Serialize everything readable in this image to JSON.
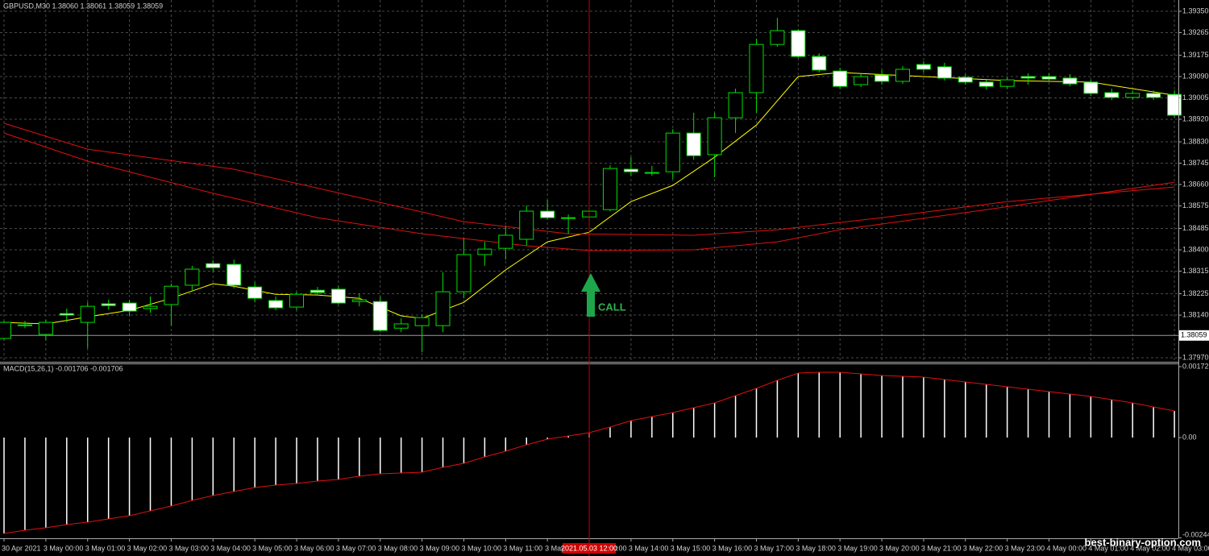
{
  "chart_data": [
    {
      "type": "candlestick",
      "title": "GBPUSD,M30  1.38060 1.38061 1.38059 1.38059",
      "categories": [
        "30 Apr 2021",
        null,
        "3 May 00:00",
        null,
        "3 May 01:00",
        null,
        "3 May 02:00",
        null,
        "3 May 03:00",
        null,
        "3 May 04:00",
        null,
        "3 May 05:00",
        null,
        "3 May 06:00",
        null,
        "3 May 07:00",
        null,
        "3 May 08:00",
        null,
        "3 May 09:00",
        null,
        "3 May 10:00",
        null,
        "3 May 11:00",
        null,
        "3 May 12:00",
        null,
        "3 May 13:00",
        null,
        "3 May 14:00",
        null,
        "3 May 15:00",
        null,
        "3 May 16:00",
        null,
        "3 May 17:00",
        null,
        "3 May 18:00",
        null,
        "3 May 19:00",
        null,
        "3 May 20:00",
        null,
        "3 May 21:00",
        null,
        "3 May 22:00",
        null,
        "3 May 23:00",
        null,
        "4 May 00:00",
        null,
        "4 May 01:00",
        null,
        "4 May 02:00",
        null,
        "4 May 03:00"
      ],
      "open": [
        1.38047,
        1.38101,
        1.38063,
        1.38146,
        1.38111,
        1.38185,
        1.38188,
        1.38166,
        1.38182,
        1.38259,
        1.38345,
        1.38342,
        1.38252,
        1.38198,
        1.38172,
        1.38239,
        1.38243,
        1.38194,
        1.38194,
        1.38088,
        1.38098,
        1.38098,
        1.38233,
        1.38381,
        1.38406,
        1.38442,
        1.38554,
        1.38528,
        1.38531,
        1.3856,
        1.38721,
        1.38708,
        1.38711,
        1.38865,
        1.38779,
        1.38926,
        1.39026,
        1.39218,
        1.39273,
        1.3917,
        1.39112,
        1.39058,
        1.39096,
        1.39071,
        1.39138,
        1.39129,
        1.39087,
        1.39068,
        1.39051,
        1.3909,
        1.3909,
        1.39084,
        1.39068,
        1.39026,
        1.39007,
        1.39023,
        1.39019
      ],
      "high": [
        1.38117,
        1.38117,
        1.38121,
        1.38166,
        1.38191,
        1.38201,
        1.38201,
        1.38214,
        1.38265,
        1.38336,
        1.38358,
        1.38361,
        1.38271,
        1.38214,
        1.38233,
        1.38252,
        1.38255,
        1.38226,
        1.38214,
        1.38127,
        1.38143,
        1.3831,
        1.38445,
        1.38432,
        1.38496,
        1.38576,
        1.38599,
        1.38541,
        1.38567,
        1.38737,
        1.38769,
        1.38734,
        1.38881,
        1.38946,
        1.38946,
        1.39042,
        1.39241,
        1.39324,
        1.39279,
        1.39183,
        1.39125,
        1.391,
        1.39116,
        1.39132,
        1.39151,
        1.39145,
        1.391,
        1.39077,
        1.39087,
        1.39103,
        1.39103,
        1.391,
        1.39077,
        1.39042,
        1.39035,
        1.39035,
        1.39035
      ],
      "low": [
        1.3804,
        1.38088,
        1.3804,
        1.38111,
        1.38008,
        1.38162,
        1.38137,
        1.38149,
        1.38098,
        1.38239,
        1.38313,
        1.38246,
        1.38191,
        1.38159,
        1.38159,
        1.38217,
        1.38182,
        1.38175,
        1.38072,
        1.38072,
        1.37992,
        1.38072,
        1.38207,
        1.38336,
        1.38361,
        1.38416,
        1.38522,
        1.38464,
        1.38512,
        1.38554,
        1.38695,
        1.38695,
        1.38682,
        1.38759,
        1.38689,
        1.38865,
        1.38946,
        1.39209,
        1.39164,
        1.39106,
        1.39042,
        1.39048,
        1.39058,
        1.39061,
        1.39106,
        1.39074,
        1.39058,
        1.39039,
        1.39042,
        1.39058,
        1.39071,
        1.39051,
        1.39013,
        1.38997,
        1.38997,
        1.38997,
        1.38926
      ],
      "close": [
        1.38111,
        1.38098,
        1.38111,
        1.3814,
        1.38175,
        1.38178,
        1.38156,
        1.38175,
        1.38255,
        1.38323,
        1.38329,
        1.38259,
        1.38207,
        1.38169,
        1.38223,
        1.3823,
        1.38188,
        1.38201,
        1.38079,
        1.38105,
        1.3813,
        1.38233,
        1.38381,
        1.38403,
        1.38458,
        1.38554,
        1.38528,
        1.38525,
        1.38554,
        1.38724,
        1.38711,
        1.38705,
        1.38865,
        1.38775,
        1.38926,
        1.39026,
        1.39218,
        1.39273,
        1.3917,
        1.39116,
        1.39051,
        1.3909,
        1.39071,
        1.39119,
        1.39119,
        1.39084,
        1.39068,
        1.39051,
        1.39077,
        1.39084,
        1.3908,
        1.39061,
        1.39023,
        1.39007,
        1.39023,
        1.39007,
        1.38936
      ],
      "up_color": "#000000",
      "down_color": "#ffffff",
      "wick_color": "#00e000",
      "lines": [
        {
          "color": "#ffff00",
          "x": [
            0,
            2,
            4,
            6,
            8,
            10,
            11,
            13,
            15,
            17,
            19,
            20,
            22,
            24,
            26,
            28,
            30,
            32,
            34,
            36,
            38,
            40,
            44,
            48,
            52,
            56
          ],
          "values": [
            1.38111,
            1.38105,
            1.38133,
            1.38159,
            1.38207,
            1.38265,
            1.38255,
            1.38223,
            1.3822,
            1.38207,
            1.38137,
            1.38127,
            1.38191,
            1.3832,
            1.38432,
            1.3847,
            1.38592,
            1.38657,
            1.38769,
            1.38897,
            1.3909,
            1.39106,
            1.3909,
            1.39074,
            1.39068,
            1.39016
          ]
        },
        {
          "color": "#e01010",
          "x": [
            0,
            4,
            11,
            17,
            22,
            27,
            33,
            37,
            42,
            48,
            56
          ],
          "values": [
            1.38904,
            1.38801,
            1.38721,
            1.38608,
            1.38512,
            1.38464,
            1.38458,
            1.3848,
            1.38528,
            1.38592,
            1.3865
          ]
        },
        {
          "color": "#e01010",
          "x": [
            0,
            4,
            10,
            15,
            20,
            25,
            28,
            33,
            37,
            40,
            47,
            56
          ],
          "values": [
            1.38865,
            1.38753,
            1.38625,
            1.38528,
            1.38464,
            1.38416,
            1.38397,
            1.384,
            1.38432,
            1.3848,
            1.3856,
            1.38669
          ]
        }
      ],
      "ylim": [
        1.37954,
        1.39395
      ],
      "yticks": [
        {
          "value": 1.3935,
          "label": "1.39350"
        },
        1.39265,
        1.39175,
        {
          "value": 1.3909,
          "label": "1.39090"
        },
        1.39005,
        {
          "value": 1.3892,
          "label": "1.38920"
        },
        {
          "value": 1.3883,
          "label": "1.38830"
        },
        1.38745,
        {
          "value": 1.3866,
          "label": "1.38660"
        },
        1.38575,
        1.38485,
        {
          "value": 1.384,
          "label": "1.38400"
        },
        1.38315,
        1.38225,
        {
          "value": 1.3814,
          "label": "1.38140"
        },
        {
          "value": 1.3797,
          "label": "1.37970"
        }
      ],
      "price_line": 1.38059,
      "grid": true,
      "crosshair_label": "2021.05.03 12:00",
      "annotation": "CALL"
    },
    {
      "type": "macd",
      "title": "MACD(15,26,1) -0.001706 -0.001706",
      "values": [
        -0.002338,
        -0.00226,
        -0.002201,
        -0.002122,
        -0.002063,
        -0.001985,
        -0.001906,
        -0.001788,
        -0.00167,
        -0.001533,
        -0.001415,
        -0.001317,
        -0.001218,
        -0.001159,
        -0.00112,
        -0.001061,
        -0.001022,
        -0.000943,
        -0.000884,
        -0.000865,
        -0.000845,
        -0.000727,
        -0.000629,
        -0.000472,
        -0.000334,
        -0.000177,
        -3.9e-05,
        3.9e-05,
        0.000118,
        0.000255,
        0.000413,
        0.000511,
        0.000609,
        0.000727,
        0.000845,
        0.001022,
        0.001199,
        0.001395,
        0.001572,
        0.001592,
        0.001592,
        0.001552,
        0.001513,
        0.001493,
        0.001474,
        0.001415,
        0.001356,
        0.001297,
        0.001238,
        0.001179,
        0.00112,
        0.001061,
        0.001002,
        0.000924,
        0.000845,
        0.000747,
        0.000648
      ],
      "color": "#ffffff",
      "signal_color": "#e01010",
      "ylim": [
        -0.002448,
        0.001729
      ],
      "yticks": [
        0.001729,
        {
          "value": 0,
          "label": "0.00"
        },
        -0.002448
      ]
    }
  ],
  "watermark": "best-binary-option.com"
}
